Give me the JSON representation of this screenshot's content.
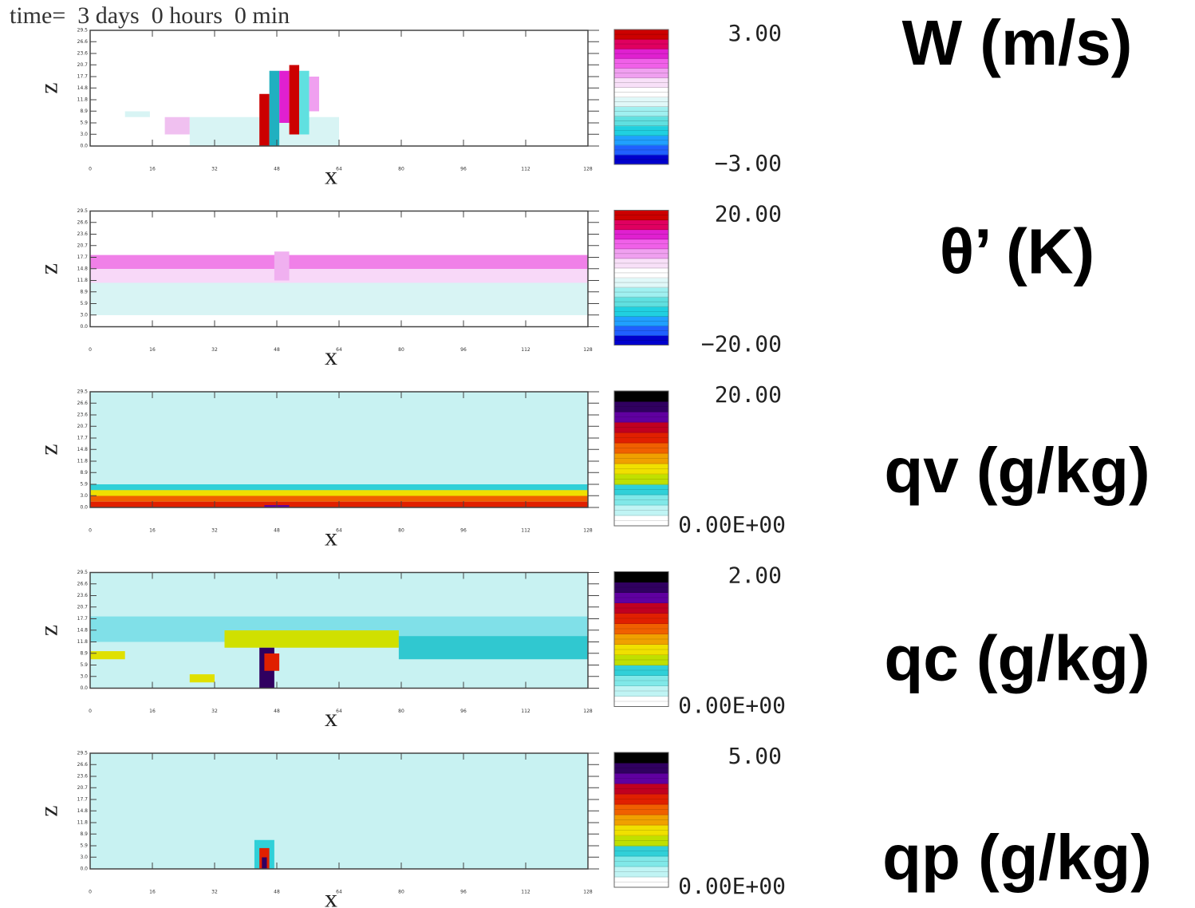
{
  "chart_data": [
    {
      "type": "heatmap",
      "annotation": "time=  3 days  0 hours  0 min",
      "title": "W (m/s)",
      "xlabel": "x",
      "ylabel": "z",
      "xlim": [
        0,
        128
      ],
      "xticks": [
        0,
        16,
        32,
        48,
        64,
        80,
        96,
        112,
        128
      ],
      "ylim": [
        0,
        29.5
      ],
      "yticks": [
        {
          "value": 0,
          "label": "0.0"
        },
        {
          "value": 3,
          "label": "3.0"
        },
        5.9,
        8.9,
        11.8,
        14.8,
        17.7,
        20.7,
        23.6,
        26.6,
        29.5
      ],
      "zlim": [
        -3,
        3
      ],
      "zticks": [
        {
          "value": 3,
          "label": "3.00"
        },
        {
          "value": -3,
          "label": "−3.00"
        }
      ],
      "colors": [
        "#0000cc",
        "#2060ff",
        "#20a0ff",
        "#20d0e0",
        "#60e0e0",
        "#a0f0f0",
        "#e0f8f8",
        "#ffffff",
        "#f8e0f8",
        "#f0a0f0",
        "#f060e8",
        "#e020d0",
        "#e00060",
        "#cc0000"
      ]
    },
    {
      "type": "heatmap",
      "title": "θ’ (K)",
      "xlabel": "x",
      "ylabel": "z",
      "xlim": [
        0,
        128
      ],
      "xticks": [
        0,
        16,
        32,
        48,
        64,
        80,
        96,
        112,
        128
      ],
      "ylim": [
        0,
        29.5
      ],
      "yticks": [
        {
          "value": 0,
          "label": "0.0"
        },
        {
          "value": 3,
          "label": "3.0"
        },
        5.9,
        8.9,
        11.8,
        14.8,
        17.7,
        20.7,
        23.6,
        26.6,
        29.5
      ],
      "zlim": [
        -20,
        20
      ],
      "zticks": [
        {
          "value": 20,
          "label": "20.00"
        },
        {
          "value": -20,
          "label": "−20.00"
        }
      ],
      "colors": [
        "#0000cc",
        "#2060ff",
        "#20a0ff",
        "#20d0e0",
        "#60e0e0",
        "#a0f0f0",
        "#e0f8f8",
        "#ffffff",
        "#f8e0f8",
        "#f0a0f0",
        "#f060e8",
        "#e020d0",
        "#e00060",
        "#cc0000"
      ]
    },
    {
      "type": "heatmap",
      "title": "qv (g/kg)",
      "xlabel": "x",
      "ylabel": "z",
      "xlim": [
        0,
        128
      ],
      "xticks": [
        0,
        16,
        32,
        48,
        64,
        80,
        96,
        112,
        128
      ],
      "ylim": [
        0,
        29.5
      ],
      "yticks": [
        {
          "value": 0,
          "label": "0.0"
        },
        {
          "value": 3,
          "label": "3.0"
        },
        5.9,
        8.9,
        11.8,
        14.8,
        17.7,
        20.7,
        23.6,
        26.6,
        29.5
      ],
      "zlim": [
        0,
        20
      ],
      "zticks": [
        {
          "value": 20,
          "label": "20.00"
        },
        {
          "value": 0,
          "label": "0.00E+00"
        }
      ],
      "colors": [
        "#ffffff",
        "#c0f4f4",
        "#80e8e8",
        "#30d0d8",
        "#c0e000",
        "#f0e000",
        "#f0a000",
        "#f06000",
        "#e02000",
        "#c00020",
        "#6000a0",
        "#300060",
        "#000000"
      ]
    },
    {
      "type": "heatmap",
      "title": "qc (g/kg)",
      "xlabel": "x",
      "ylabel": "z",
      "xlim": [
        0,
        128
      ],
      "xticks": [
        0,
        16,
        32,
        48,
        64,
        80,
        96,
        112,
        128
      ],
      "ylim": [
        0,
        29.5
      ],
      "yticks": [
        {
          "value": 0,
          "label": "0.0"
        },
        {
          "value": 3,
          "label": "3.0"
        },
        5.9,
        8.9,
        11.8,
        14.8,
        17.7,
        20.7,
        23.6,
        26.6,
        29.5
      ],
      "zlim": [
        0,
        2
      ],
      "zticks": [
        {
          "value": 2,
          "label": "2.00"
        },
        {
          "value": 0,
          "label": "0.00E+00"
        }
      ],
      "colors": [
        "#ffffff",
        "#c0f4f4",
        "#80e8e8",
        "#30d0d8",
        "#c0e000",
        "#f0e000",
        "#f0a000",
        "#f06000",
        "#e02000",
        "#c00020",
        "#6000a0",
        "#300060",
        "#000000"
      ]
    },
    {
      "type": "heatmap",
      "title": "qp (g/kg)",
      "xlabel": "x",
      "ylabel": "z",
      "xlim": [
        0,
        128
      ],
      "xticks": [
        0,
        16,
        32,
        48,
        64,
        80,
        96,
        112,
        128
      ],
      "ylim": [
        0,
        29.5
      ],
      "yticks": [
        {
          "value": 0,
          "label": "0.0"
        },
        {
          "value": 3,
          "label": "3.0"
        },
        5.9,
        8.9,
        11.8,
        14.8,
        17.7,
        20.7,
        23.6,
        26.6,
        29.5
      ],
      "zlim": [
        0,
        5
      ],
      "zticks": [
        {
          "value": 5,
          "label": "5.00"
        },
        {
          "value": 0,
          "label": "0.00E+00"
        }
      ],
      "colors": [
        "#ffffff",
        "#c0f4f4",
        "#80e8e8",
        "#30d0d8",
        "#c0e000",
        "#f0e000",
        "#f0a000",
        "#f06000",
        "#e02000",
        "#c00020",
        "#6000a0",
        "#300060",
        "#000000"
      ]
    }
  ]
}
